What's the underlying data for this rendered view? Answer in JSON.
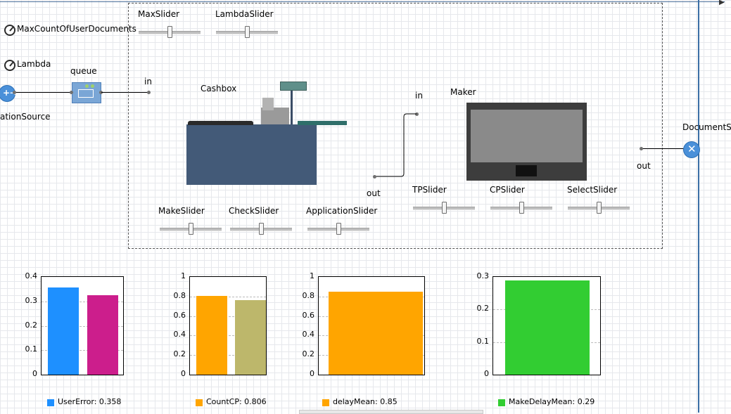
{
  "parameters": [
    {
      "name": "MaxCountOfUserDocuments"
    },
    {
      "name": "Lambda"
    }
  ],
  "sliders": {
    "max": "MaxSlider",
    "lambda": "LambdaSlider",
    "make": "MakeSlider",
    "check": "CheckSlider",
    "application": "ApplicationSlider",
    "tp": "TPSlider",
    "cp": "CPSlider",
    "select": "SelectSlider"
  },
  "blocks": {
    "source_label": "ationSource",
    "queue_label": "queue",
    "in_label_1": "in",
    "cashbox_label": "Cashbox",
    "in_label_2": "in",
    "maker_label": "Maker",
    "out_label_1": "out",
    "sink_label": "DocumentSi",
    "out_label_2": "out"
  },
  "colors": {
    "user_error": "#1e90ff",
    "magenta": "#cc1e8c",
    "orange": "#ffa500",
    "olive": "#bdb76b",
    "green": "#32cd32"
  },
  "chart_data": [
    {
      "type": "bar",
      "ylim": [
        0,
        0.4
      ],
      "yticks": [
        "0.4",
        "0.3",
        "0.2",
        "0.1",
        "0"
      ],
      "series": [
        {
          "name": "UserError: 0.358",
          "value": 0.358,
          "color": "#1e90ff"
        },
        {
          "value": 0.325,
          "color": "#cc1e8c"
        }
      ]
    },
    {
      "type": "bar",
      "ylim": [
        0,
        1
      ],
      "yticks": [
        "1",
        "0.8",
        "0.6",
        "0.4",
        "0.2",
        "0"
      ],
      "series": [
        {
          "name": "CountCP: 0.806",
          "value": 0.806,
          "color": "#ffa500"
        },
        {
          "value": 0.76,
          "color": "#bdb76b"
        }
      ]
    },
    {
      "type": "bar",
      "ylim": [
        0,
        1
      ],
      "yticks": [
        "1",
        "0.8",
        "0.6",
        "0.4",
        "0.2",
        "0"
      ],
      "series": [
        {
          "name": "delayMean: 0.85",
          "value": 0.85,
          "color": "#ffa500"
        }
      ]
    },
    {
      "type": "bar",
      "ylim": [
        0,
        0.3
      ],
      "yticks": [
        "0.3",
        "0.2",
        "0.1",
        "0"
      ],
      "series": [
        {
          "name": "MakeDelayMean: 0.29",
          "value": 0.29,
          "color": "#32cd32"
        }
      ]
    }
  ]
}
